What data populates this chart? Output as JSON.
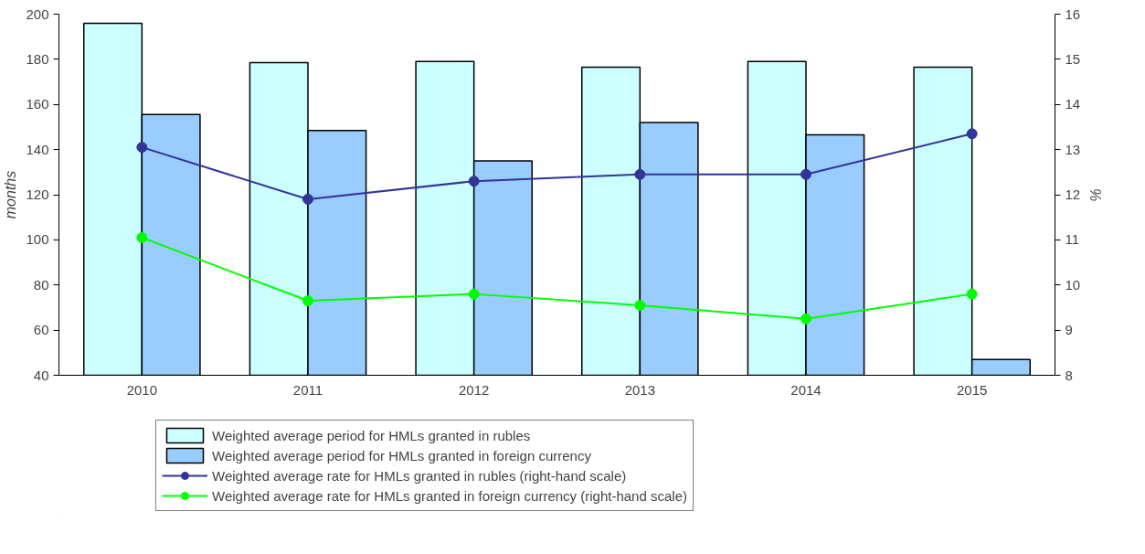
{
  "chart_data": {
    "type": "bar",
    "categories": [
      "2010",
      "2011",
      "2012",
      "2013",
      "2014",
      "2015"
    ],
    "ylabel": "months",
    "y2label": "%",
    "ylim": [
      40,
      200
    ],
    "yticks": [
      40,
      60,
      80,
      100,
      120,
      140,
      160,
      180,
      200
    ],
    "y2lim": [
      8,
      16
    ],
    "y2ticks": [
      8,
      9,
      10,
      11,
      12,
      13,
      14,
      15,
      16
    ],
    "grid": false,
    "legend": "bottom",
    "marker": "circle",
    "series": [
      {
        "name": "Weighted average period for HMLs granted in rubles",
        "type": "bar",
        "color": "#ccffff",
        "values": [
          196,
          178.5,
          179,
          176.5,
          179,
          176.5
        ]
      },
      {
        "name": "Weighted average period for HMLs granted in foreign currency",
        "type": "bar",
        "color": "#99ccff",
        "values": [
          155.5,
          148.5,
          135,
          152,
          146.5,
          47
        ]
      },
      {
        "name": "Weighted average rate for HMLs granted in rubles (right-hand scale)",
        "type": "line",
        "axis": "y2",
        "color": "#333399",
        "values": [
          13.05,
          11.9,
          12.3,
          12.45,
          12.45,
          13.35
        ]
      },
      {
        "name": "Weighted average rate for HMLs granted in foreign currency (right-hand scale)",
        "type": "line",
        "axis": "y2",
        "color": "#00ff00",
        "values": [
          11.05,
          9.65,
          9.8,
          9.55,
          9.25,
          9.8
        ]
      }
    ]
  }
}
